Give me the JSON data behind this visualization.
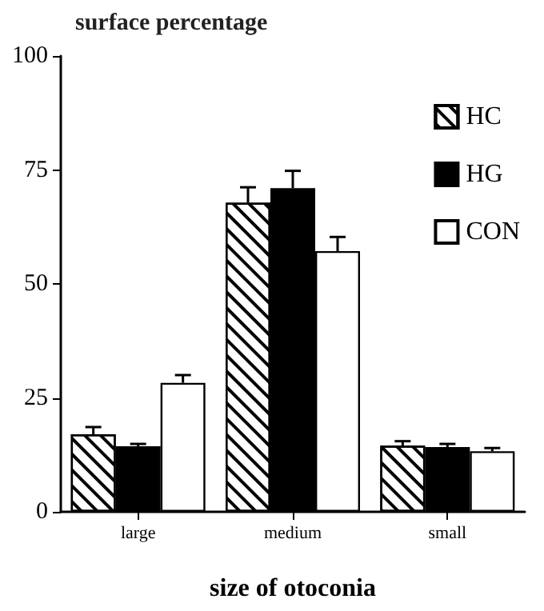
{
  "chart_data": {
    "type": "bar",
    "ylabel": "surface percentage",
    "xlabel": "size of otoconia",
    "categories": [
      "large",
      "medium",
      "small"
    ],
    "series": [
      {
        "name": "HC",
        "color": "#ffffff",
        "values": [
          17,
          67.8,
          14.5
        ],
        "errors": [
          [
            17,
            18.6
          ],
          [
            67.8,
            71.2
          ],
          [
            14.5,
            15.5
          ]
        ]
      },
      {
        "name": "HG",
        "color": "#000000",
        "values": [
          14.4,
          71,
          14.2
        ],
        "errors": [
          [
            14.4,
            14.9
          ],
          [
            71,
            74.8
          ],
          [
            14.2,
            14.9
          ]
        ]
      },
      {
        "name": "CON",
        "color": "#ffffff",
        "values": [
          28.3,
          57.2,
          13.3
        ],
        "errors": [
          [
            28.3,
            30
          ],
          [
            57.2,
            60.3
          ],
          [
            13.3,
            14
          ]
        ]
      }
    ],
    "ylim": [
      0,
      100
    ],
    "yticks": [
      0,
      25,
      50,
      75,
      100
    ],
    "grid": false,
    "legend": "top right"
  }
}
